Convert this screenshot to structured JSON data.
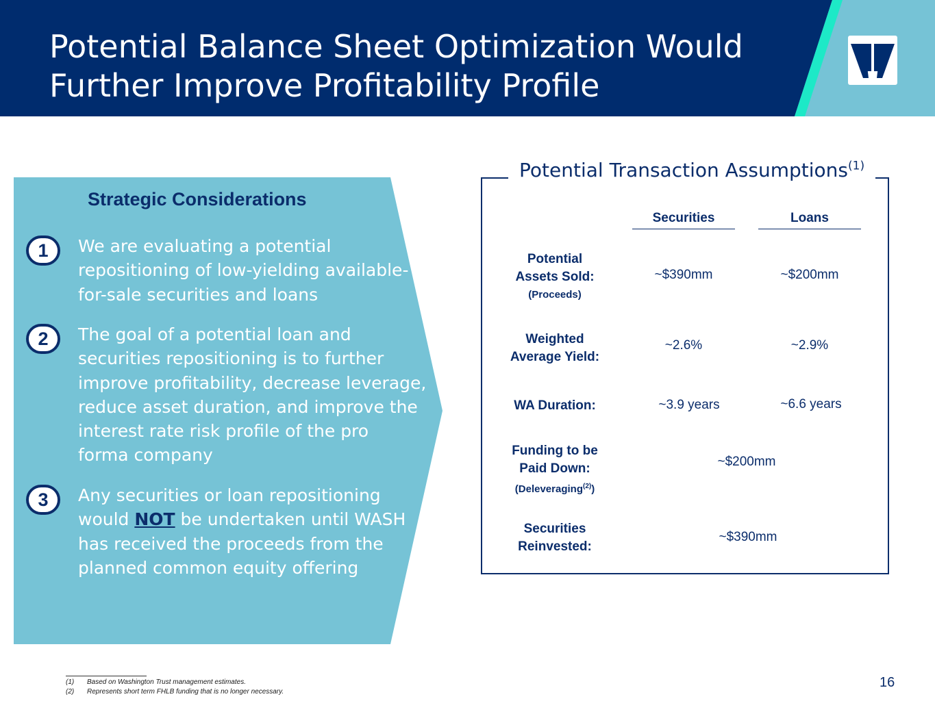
{
  "header": {
    "title_line1": "Potential Balance Sheet Optimization Would",
    "title_line2": "Further Improve Profitability Profile",
    "logo_icon": "washington-trust-w-logo"
  },
  "colors": {
    "navy": "#002c6e",
    "light_blue": "#76c3d6",
    "teal_accent": "#1de9c7"
  },
  "strategic": {
    "heading": "Strategic Considerations",
    "points": [
      {
        "number": "1",
        "lines": [
          "We are evaluating a potential",
          "repositioning of low-yielding available-",
          "for-sale securities and loans"
        ]
      },
      {
        "number": "2",
        "lines": [
          "The goal of a potential loan and",
          "securities repositioning is to further",
          "improve profitability, decrease leverage,",
          "reduce asset duration, and improve the",
          "interest rate risk profile of the pro",
          "forma company"
        ]
      },
      {
        "number": "3",
        "line1": "Any securities or loan repositioning",
        "line2_pre": "would ",
        "line2_emph": "NOT",
        "line2_post": " be undertaken until WASH",
        "line3": "has received the proceeds from the",
        "line4": "planned common equity offering"
      }
    ]
  },
  "assumptions": {
    "title": "Potential Transaction Assumptions",
    "title_sup": "(1)",
    "col_securities": "Securities",
    "col_loans": "Loans",
    "rows": [
      {
        "label1": "Potential",
        "label2": "Assets Sold:",
        "label3": "(Proceeds)",
        "securities": "~$390mm",
        "loans": "~$200mm"
      },
      {
        "label1": "Weighted",
        "label2": "Average Yield:",
        "securities": "~2.6%",
        "loans": "~2.9%"
      },
      {
        "label1": "WA Duration:",
        "securities": "~3.9 years",
        "loans": "~6.6 years"
      },
      {
        "label1": "Funding to be",
        "label2": "Paid Down:",
        "label3": "(Deleveraging",
        "label3_sup": "(2)",
        "label3_end": ")",
        "combined": "~$200mm"
      },
      {
        "label1": "Securities",
        "label2": "Reinvested:",
        "combined": "~$390mm"
      }
    ]
  },
  "footnotes": [
    {
      "num": "(1)",
      "text": "Based on Washington Trust management estimates."
    },
    {
      "num": "(2)",
      "text": "Represents short term FHLB funding that is no longer necessary."
    }
  ],
  "page_number": "16"
}
